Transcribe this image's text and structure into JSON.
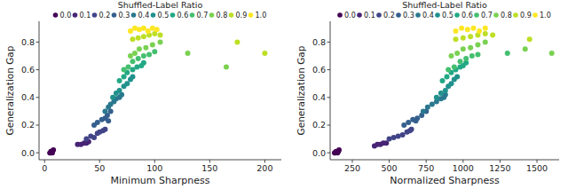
{
  "chart_data": [
    {
      "type": "scatter",
      "title": "Shuffled-Label Ratio",
      "x_label": "Minimum Sharpness",
      "y_label": "Generalization Gap",
      "xlim": [
        -5,
        215
      ],
      "xticks": [
        0,
        50,
        100,
        150,
        200
      ],
      "ylim": [
        -0.05,
        0.95
      ],
      "yticks": [
        {
          "value": 0,
          "label": "0.0"
        },
        {
          "value": 0.2,
          "label": "0.2"
        },
        {
          "value": 0.4,
          "label": "0.4"
        },
        {
          "value": 0.6,
          "label": "0.6"
        },
        {
          "value": 0.8,
          "label": "0.8"
        }
      ],
      "grid": false,
      "legend": "top",
      "marker": "circle",
      "series": [
        {
          "name": "0.0",
          "color": "#440154",
          "x": [
            5,
            6,
            7,
            8,
            6,
            5
          ],
          "values": [
            0.0,
            0.01,
            0.0,
            0.02,
            0.01,
            0.0
          ]
        },
        {
          "name": "0.1",
          "color": "#482475",
          "x": [
            30,
            33,
            36,
            38,
            40
          ],
          "values": [
            0.06,
            0.06,
            0.07,
            0.07,
            0.08
          ]
        },
        {
          "name": "0.2",
          "color": "#414487",
          "x": [
            38,
            42,
            45,
            48,
            50,
            53,
            55
          ],
          "values": [
            0.1,
            0.12,
            0.11,
            0.14,
            0.15,
            0.16,
            0.17
          ]
        },
        {
          "name": "0.3",
          "color": "#355f8d",
          "x": [
            45,
            48,
            52,
            55,
            57,
            60,
            58
          ],
          "values": [
            0.2,
            0.22,
            0.24,
            0.25,
            0.27,
            0.3,
            0.23
          ]
        },
        {
          "name": "0.4",
          "color": "#2a788e",
          "x": [
            55,
            58,
            60,
            63,
            65,
            68,
            70
          ],
          "values": [
            0.3,
            0.33,
            0.35,
            0.37,
            0.39,
            0.4,
            0.42
          ]
        },
        {
          "name": "0.5",
          "color": "#21918c",
          "x": [
            62,
            65,
            68,
            72,
            75,
            78,
            80
          ],
          "values": [
            0.4,
            0.43,
            0.45,
            0.48,
            0.5,
            0.53,
            0.55
          ]
        },
        {
          "name": "0.6",
          "color": "#22a884",
          "x": [
            68,
            72,
            75,
            80,
            84,
            88,
            90
          ],
          "values": [
            0.52,
            0.55,
            0.58,
            0.6,
            0.62,
            0.63,
            0.65
          ]
        },
        {
          "name": "0.7",
          "color": "#44bf70",
          "x": [
            72,
            76,
            80,
            85,
            90,
            95,
            100
          ],
          "values": [
            0.6,
            0.62,
            0.66,
            0.68,
            0.7,
            0.71,
            0.73
          ]
        },
        {
          "name": "0.8",
          "color": "#7ad151",
          "x": [
            78,
            82,
            86,
            92,
            98,
            105,
            130,
            165
          ],
          "values": [
            0.7,
            0.72,
            0.75,
            0.76,
            0.78,
            0.8,
            0.72,
            0.62
          ]
        },
        {
          "name": "0.9",
          "color": "#bddf26",
          "x": [
            80,
            85,
            90,
            95,
            100,
            105,
            175,
            200
          ],
          "values": [
            0.82,
            0.83,
            0.84,
            0.85,
            0.86,
            0.85,
            0.8,
            0.72
          ]
        },
        {
          "name": "1.0",
          "color": "#fde725",
          "x": [
            78,
            82,
            86,
            90,
            94,
            98,
            102
          ],
          "values": [
            0.88,
            0.9,
            0.89,
            0.9,
            0.88,
            0.9,
            0.89
          ]
        }
      ]
    },
    {
      "type": "scatter",
      "title": "Shuffled-Label Ratio",
      "x_label": "Normalized Sharpness",
      "y_label": "Generalization Gap",
      "xlim": [
        100,
        1650
      ],
      "xticks": [
        250,
        500,
        750,
        1000,
        1250,
        1500
      ],
      "ylim": [
        -0.05,
        0.95
      ],
      "yticks": [
        {
          "value": 0,
          "label": "0.0"
        },
        {
          "value": 0.2,
          "label": "0.2"
        },
        {
          "value": 0.4,
          "label": "0.4"
        },
        {
          "value": 0.6,
          "label": "0.6"
        },
        {
          "value": 0.8,
          "label": "0.8"
        }
      ],
      "grid": false,
      "legend": "top",
      "marker": "circle",
      "series": [
        {
          "name": "0.0",
          "color": "#440154",
          "x": [
            130,
            140,
            150,
            160,
            155,
            135
          ],
          "values": [
            0.0,
            0.01,
            0.0,
            0.02,
            0.01,
            0.0
          ]
        },
        {
          "name": "0.1",
          "color": "#482475",
          "x": [
            400,
            420,
            440,
            460,
            480
          ],
          "values": [
            0.05,
            0.06,
            0.06,
            0.07,
            0.07
          ]
        },
        {
          "name": "0.2",
          "color": "#414487",
          "x": [
            500,
            530,
            560,
            590,
            620,
            640,
            650
          ],
          "values": [
            0.1,
            0.11,
            0.12,
            0.13,
            0.15,
            0.16,
            0.17
          ]
        },
        {
          "name": "0.3",
          "color": "#355f8d",
          "x": [
            600,
            630,
            660,
            690,
            720,
            750,
            680
          ],
          "values": [
            0.2,
            0.22,
            0.24,
            0.25,
            0.27,
            0.3,
            0.23
          ]
        },
        {
          "name": "0.4",
          "color": "#2a788e",
          "x": [
            730,
            760,
            790,
            820,
            850,
            870,
            880
          ],
          "values": [
            0.3,
            0.33,
            0.35,
            0.37,
            0.39,
            0.4,
            0.42
          ]
        },
        {
          "name": "0.5",
          "color": "#21918c",
          "x": [
            820,
            850,
            880,
            900,
            920,
            940,
            960
          ],
          "values": [
            0.4,
            0.43,
            0.45,
            0.48,
            0.5,
            0.53,
            0.55
          ]
        },
        {
          "name": "0.6",
          "color": "#22a884",
          "x": [
            860,
            890,
            920,
            950,
            980,
            1000,
            1020
          ],
          "values": [
            0.52,
            0.55,
            0.58,
            0.6,
            0.62,
            0.63,
            0.65
          ]
        },
        {
          "name": "0.7",
          "color": "#44bf70",
          "x": [
            900,
            940,
            980,
            1020,
            1060,
            1100,
            1300
          ],
          "values": [
            0.6,
            0.62,
            0.66,
            0.68,
            0.7,
            0.71,
            0.72
          ]
        },
        {
          "name": "0.8",
          "color": "#7ad151",
          "x": [
            920,
            960,
            1000,
            1050,
            1100,
            1150,
            1420,
            1600
          ],
          "values": [
            0.7,
            0.72,
            0.75,
            0.76,
            0.78,
            0.8,
            0.75,
            0.72
          ]
        },
        {
          "name": "0.9",
          "color": "#bddf26",
          "x": [
            950,
            1000,
            1050,
            1100,
            1150,
            1200,
            1450
          ],
          "values": [
            0.82,
            0.83,
            0.84,
            0.85,
            0.86,
            0.85,
            0.82
          ]
        },
        {
          "name": "1.0",
          "color": "#fde725",
          "x": [
            950,
            990,
            1030,
            1070,
            1110,
            1150
          ],
          "values": [
            0.88,
            0.9,
            0.89,
            0.9,
            0.88,
            0.9
          ]
        }
      ]
    }
  ]
}
